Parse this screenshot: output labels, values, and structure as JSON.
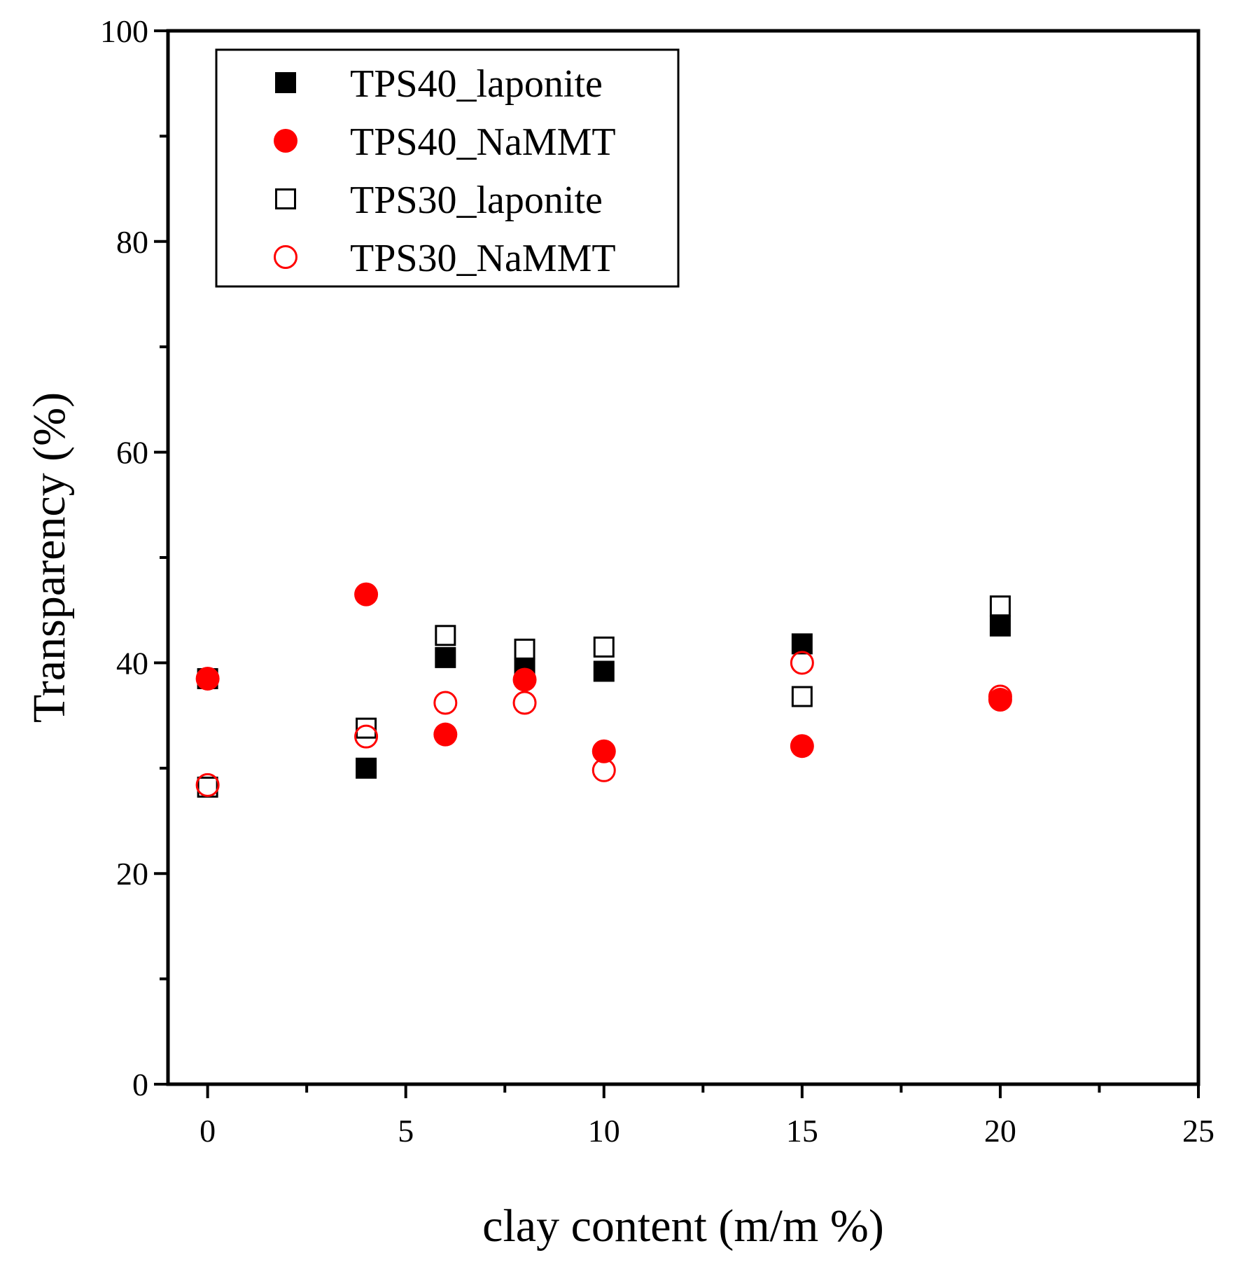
{
  "chart_data": {
    "type": "scatter",
    "title": "",
    "xlabel": "clay content (m/m %)",
    "ylabel": "Transparency (%)",
    "xlim": [
      -1,
      25
    ],
    "ylim": [
      0,
      100
    ],
    "xticks": [
      0,
      5,
      10,
      15,
      20,
      25
    ],
    "yticks": [
      0,
      20,
      40,
      60,
      80,
      100
    ],
    "grid": false,
    "legend_position": "top-left",
    "series": [
      {
        "name": "TPS40_laponite",
        "marker": "square-filled",
        "color": "#000000",
        "x": [
          0,
          4,
          6,
          8,
          10,
          15,
          20
        ],
        "y": [
          38.5,
          30,
          40.5,
          39.5,
          39.2,
          41.8,
          43.5
        ]
      },
      {
        "name": "TPS40_NaMMT",
        "marker": "circle-filled",
        "color": "#ff0000",
        "x": [
          0,
          4,
          6,
          8,
          10,
          15,
          20
        ],
        "y": [
          38.5,
          46.5,
          33.2,
          38.4,
          31.6,
          32.1,
          36.5
        ]
      },
      {
        "name": "TPS30_laponite",
        "marker": "square-open",
        "color": "#000000",
        "x": [
          0,
          4,
          6,
          8,
          10,
          15,
          20
        ],
        "y": [
          28.2,
          33.8,
          42.6,
          41.3,
          41.5,
          36.8,
          45.4
        ]
      },
      {
        "name": "TPS30_NaMMT",
        "marker": "circle-open",
        "color": "#ff0000",
        "x": [
          0,
          4,
          6,
          8,
          10,
          15,
          20
        ],
        "y": [
          28.4,
          33.0,
          36.2,
          36.2,
          29.8,
          40.0,
          36.8
        ]
      }
    ]
  }
}
